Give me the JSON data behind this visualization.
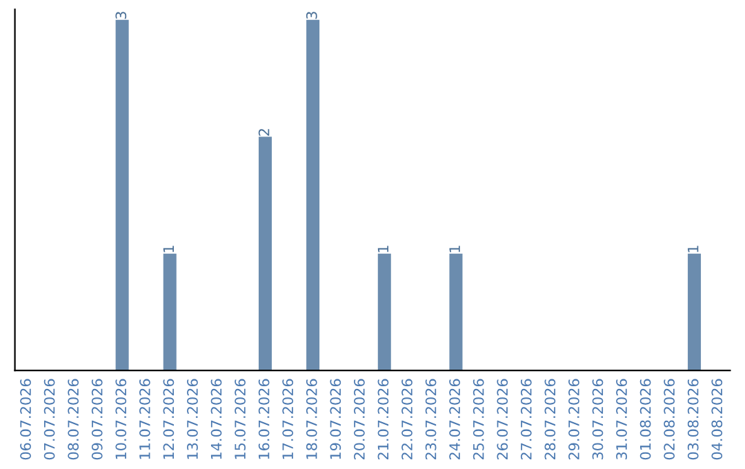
{
  "chart_data": {
    "type": "bar",
    "categories": [
      "06.07.2026",
      "07.07.2026",
      "08.07.2026",
      "09.07.2026",
      "10.07.2026",
      "11.07.2026",
      "12.07.2026",
      "13.07.2026",
      "14.07.2026",
      "15.07.2026",
      "16.07.2026",
      "17.07.2026",
      "18.07.2026",
      "19.07.2026",
      "20.07.2026",
      "21.07.2026",
      "22.07.2026",
      "23.07.2026",
      "24.07.2026",
      "25.07.2026",
      "26.07.2026",
      "27.07.2026",
      "28.07.2026",
      "29.07.2026",
      "30.07.2026",
      "31.07.2026",
      "01.08.2026",
      "02.08.2026",
      "03.08.2026",
      "04.08.2026"
    ],
    "values": [
      0,
      0,
      0,
      0,
      3,
      0,
      1,
      0,
      0,
      0,
      2,
      0,
      3,
      0,
      0,
      1,
      0,
      0,
      1,
      0,
      0,
      0,
      0,
      0,
      0,
      0,
      0,
      0,
      1,
      0
    ],
    "value_labels": [
      null,
      null,
      null,
      null,
      "3",
      null,
      "1",
      null,
      null,
      null,
      "2",
      null,
      "3",
      null,
      null,
      "1",
      null,
      null,
      "1",
      null,
      null,
      null,
      null,
      null,
      null,
      null,
      null,
      null,
      "1",
      null
    ],
    "color": "#6b8cae",
    "tick_labels": "x",
    "grid": false,
    "legend": false
  }
}
